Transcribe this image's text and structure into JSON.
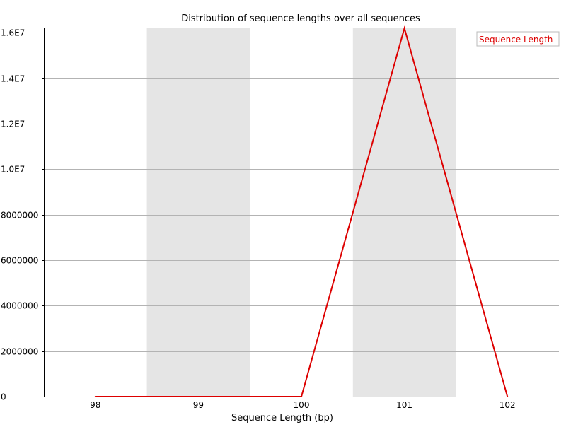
{
  "chart_data": {
    "type": "line",
    "title": "Distribution of sequence lengths over all sequences",
    "xlabel": "Sequence Length (bp)",
    "ylabel": "",
    "x": [
      98,
      99,
      100,
      101,
      102
    ],
    "categories": [
      "98",
      "99",
      "100",
      "101",
      "102"
    ],
    "series": [
      {
        "name": "Sequence Length",
        "values": [
          0,
          0,
          0,
          16200000,
          0
        ],
        "color": "#dd0000"
      }
    ],
    "ylim": [
      0,
      16200000
    ],
    "yticks": [
      0,
      2000000,
      4000000,
      6000000,
      8000000,
      10000000,
      12000000,
      14000000,
      16000000
    ],
    "ytick_labels": [
      "0",
      "2000000",
      "4000000",
      "6000000",
      "8000000",
      "1.0E7",
      "1.2E7",
      "1.4E7",
      "1.6E7"
    ],
    "grid": true,
    "alternating_bands": true,
    "band_color": "#e5e5e5",
    "legend_position": "top-right"
  }
}
